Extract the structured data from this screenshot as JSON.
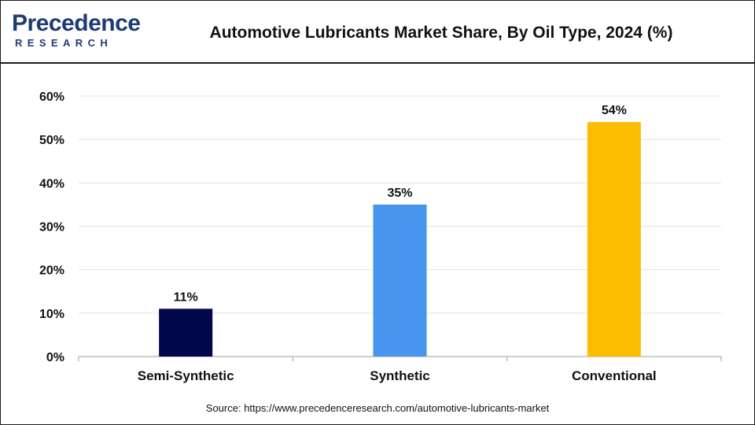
{
  "logo": {
    "word": "Precedence",
    "sub": "RESEARCH"
  },
  "chart_data": {
    "type": "bar",
    "title": "Automotive Lubricants Market Share, By Oil Type, 2024 (%)",
    "categories": [
      "Semi-Synthetic",
      "Synthetic",
      "Conventional"
    ],
    "values": [
      11,
      35,
      54
    ],
    "data_labels": [
      "11%",
      "35%",
      "54%"
    ],
    "colors": [
      "#02064a",
      "#4895ef",
      "#fcbd00"
    ],
    "ylim": [
      0,
      60
    ],
    "yticks": [
      0,
      10,
      20,
      30,
      40,
      50,
      60
    ],
    "ytick_labels": [
      "0%",
      "10%",
      "20%",
      "30%",
      "40%",
      "50%",
      "60%"
    ],
    "grid": true,
    "legend": "none"
  },
  "source": "Source: https://www.precedenceresearch.com/automotive-lubricants-market"
}
